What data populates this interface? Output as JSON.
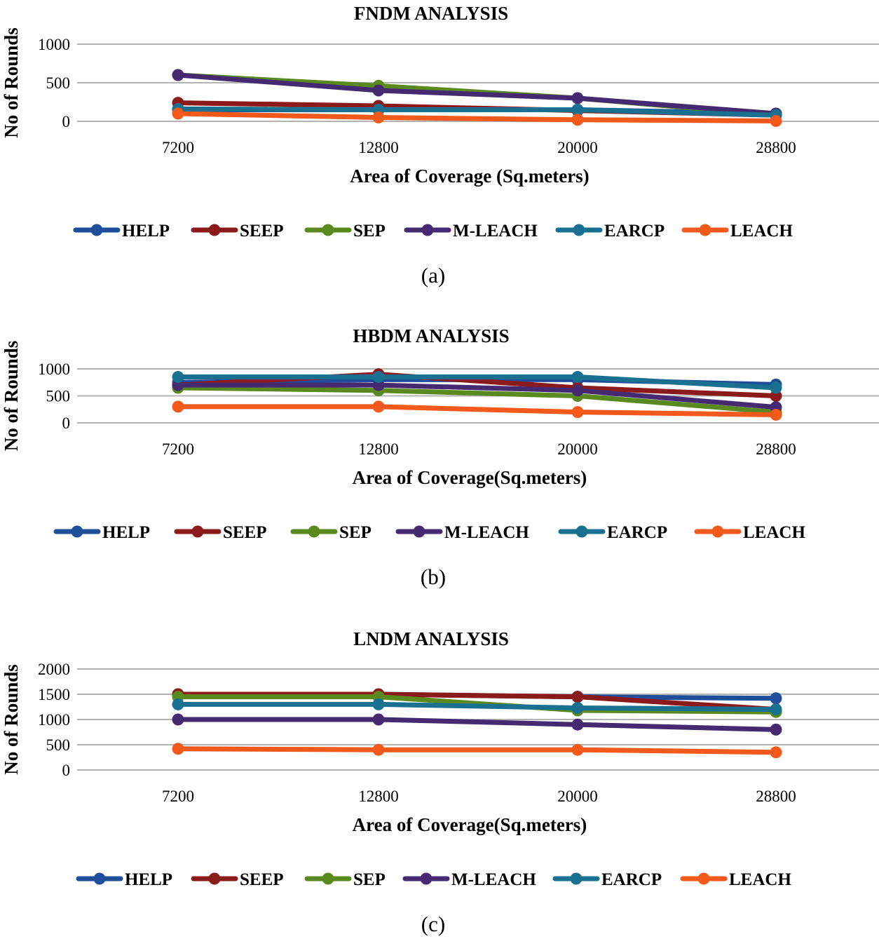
{
  "colors": {
    "HELP": "#1f4e9a",
    "SEEP": "#8b1a1a",
    "SEP": "#5a8a1e",
    "M-LEACH": "#452a72",
    "EARCP": "#1a7090",
    "LEACH": "#f2591b",
    "grid": "#b3b3b3"
  },
  "chart_data": [
    {
      "type": "line",
      "title": "FNDM ANALYSIS",
      "xlabel": "Area of Coverage (Sq.meters)",
      "ylabel": "No of Rounds",
      "caption": "(a)",
      "categories": [
        "7200",
        "12800",
        "20000",
        "28800"
      ],
      "ylim": [
        0,
        1000
      ],
      "yticks": [
        "0",
        "500",
        "1000"
      ],
      "grid": true,
      "legend": "bottom",
      "series": [
        {
          "name": "HELP",
          "values": [
            150,
            150,
            150,
            100
          ]
        },
        {
          "name": "SEEP",
          "values": [
            240,
            200,
            140,
            80
          ]
        },
        {
          "name": "SEP",
          "values": [
            600,
            460,
            300,
            80
          ]
        },
        {
          "name": "M-LEACH",
          "values": [
            600,
            400,
            300,
            100
          ]
        },
        {
          "name": "EARCP",
          "values": [
            160,
            150,
            150,
            80
          ]
        },
        {
          "name": "LEACH",
          "values": [
            100,
            50,
            20,
            5
          ]
        }
      ]
    },
    {
      "type": "line",
      "title": "HBDM ANALYSIS",
      "xlabel": "Area of Coverage(Sq.meters)",
      "ylabel": "No of Rounds",
      "caption": "(b)",
      "categories": [
        "7200",
        "12800",
        "20000",
        "28800"
      ],
      "ylim": [
        0,
        1000
      ],
      "yticks": [
        "0",
        "500",
        "1000"
      ],
      "grid": true,
      "legend": "bottom",
      "series": [
        {
          "name": "HELP",
          "values": [
            750,
            800,
            800,
            710
          ]
        },
        {
          "name": "SEEP",
          "values": [
            700,
            900,
            650,
            500
          ]
        },
        {
          "name": "SEP",
          "values": [
            650,
            600,
            500,
            200
          ]
        },
        {
          "name": "M-LEACH",
          "values": [
            700,
            700,
            600,
            290
          ]
        },
        {
          "name": "EARCP",
          "values": [
            850,
            850,
            850,
            650
          ]
        },
        {
          "name": "LEACH",
          "values": [
            300,
            300,
            200,
            150
          ]
        }
      ]
    },
    {
      "type": "line",
      "title": "LNDM ANALYSIS",
      "xlabel": "Area of Coverage(Sq.meters)",
      "ylabel": "No of Rounds",
      "caption": "(c)",
      "categories": [
        "7200",
        "12800",
        "20000",
        "28800"
      ],
      "ylim": [
        0,
        2000
      ],
      "yticks": [
        "0",
        "500",
        "1000",
        "1500",
        "2000"
      ],
      "grid": true,
      "legend": "bottom",
      "series": [
        {
          "name": "HELP",
          "values": [
            1500,
            1500,
            1450,
            1420
          ]
        },
        {
          "name": "SEEP",
          "values": [
            1500,
            1500,
            1450,
            1200
          ]
        },
        {
          "name": "SEP",
          "values": [
            1450,
            1450,
            1180,
            1150
          ]
        },
        {
          "name": "M-LEACH",
          "values": [
            1000,
            1000,
            900,
            800
          ]
        },
        {
          "name": "EARCP",
          "values": [
            1300,
            1300,
            1230,
            1200
          ]
        },
        {
          "name": "LEACH",
          "values": [
            420,
            400,
            400,
            350
          ]
        }
      ]
    }
  ]
}
